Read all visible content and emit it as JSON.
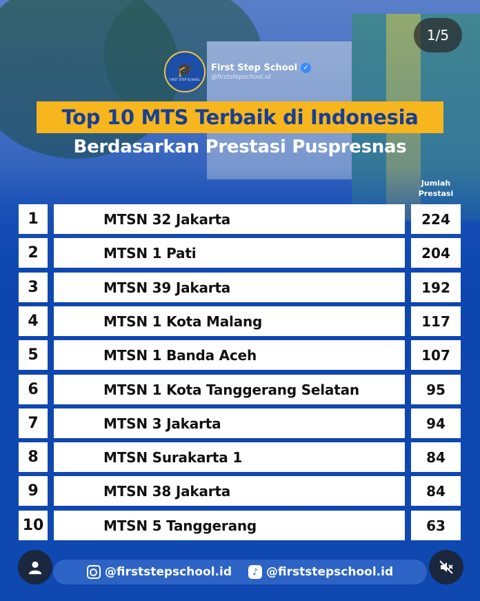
{
  "post": {
    "counter": "1/5",
    "brand": {
      "name": "First Step School",
      "handle": "@firststepschool.id",
      "logo_text": "FIRST STEP SCHOOL"
    },
    "title": "Top 10 MTS Terbaik di Indonesia",
    "subtitle": "Berdasarkan Prestasi Puspresnas",
    "column_header": [
      "Jumlah",
      "Prestasi"
    ],
    "rows": [
      {
        "rank": "1",
        "name": "MTSN 32 Jakarta",
        "count": "224"
      },
      {
        "rank": "2",
        "name": "MTSN 1 Pati",
        "count": "204"
      },
      {
        "rank": "3",
        "name": "MTSN 39 Jakarta",
        "count": "192"
      },
      {
        "rank": "4",
        "name": "MTSN 1 Kota Malang",
        "count": "117"
      },
      {
        "rank": "5",
        "name": "MTSN 1 Banda Aceh",
        "count": "107"
      },
      {
        "rank": "6",
        "name": "MTSN 1 Kota Tanggerang Selatan",
        "count": "95"
      },
      {
        "rank": "7",
        "name": "MTSN 3 Jakarta",
        "count": "94"
      },
      {
        "rank": "8",
        "name": "MTSN Surakarta 1",
        "count": "84"
      },
      {
        "rank": "9",
        "name": "MTSN 38 Jakarta",
        "count": "84"
      },
      {
        "rank": "10",
        "name": "MTSN 5 Tanggerang",
        "count": "63"
      }
    ],
    "footer": {
      "instagram": "@firststepschool.id",
      "tiktok": "@firststepschool.id"
    }
  },
  "icons": {
    "profile": "user-icon",
    "mute": "mute-icon",
    "instagram": "instagram-icon",
    "tiktok": "tiktok-icon",
    "verified": "verified-badge-icon"
  },
  "colors": {
    "title_box": "#f7b61e",
    "title_text": "#173f93",
    "background": "#0e48b0",
    "footer_bar": "#2d63c4"
  }
}
